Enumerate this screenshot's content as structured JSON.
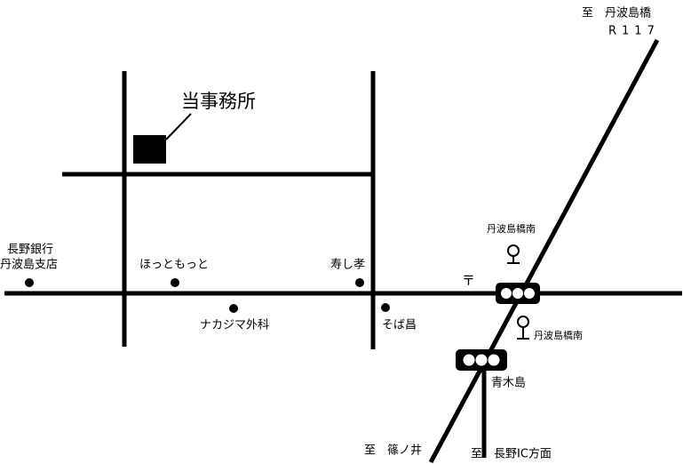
{
  "destinations": {
    "north": "至　丹波島橋",
    "route": "R117",
    "southwest": "至　篠ノ井",
    "south": "至　長野IC方面"
  },
  "office": "当事務所",
  "landmarks": {
    "bank_line1": "長野銀行",
    "bank_line2": "丹波島支店",
    "hottomotto": "ほっともっと",
    "sushi": "寿し孝",
    "post": "〒",
    "clinic": "ナカジマ外科",
    "soba": "そば昌"
  },
  "bus_stops": [
    "丹波島橋南",
    "丹波島橋南"
  ],
  "intersection": "青木島"
}
